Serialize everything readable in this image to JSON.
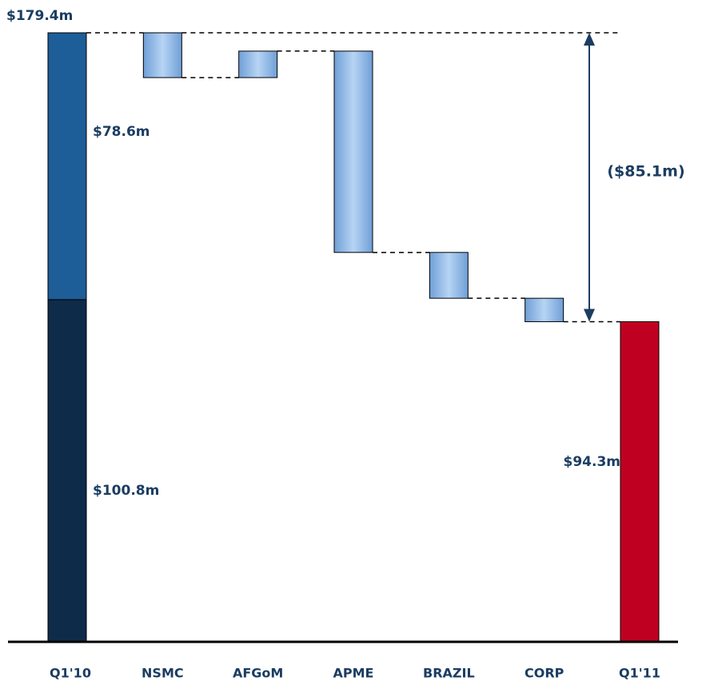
{
  "chart_data": {
    "type": "waterfall",
    "categories": [
      "Q1'10",
      "NSMC",
      "AFGoM",
      "APME",
      "BRAZIL",
      "CORP",
      "Q1'11"
    ],
    "values": [
      179.4,
      -13.2,
      7.8,
      -59.3,
      -13.5,
      -6.9,
      94.3
    ],
    "value_labels": [
      "$179.4m",
      null,
      null,
      null,
      null,
      null,
      "$94.3m"
    ],
    "segments": [
      {
        "value": 100.8,
        "label": "$100.8m",
        "color": "#0e2b4a"
      },
      {
        "value": 78.6,
        "label": "$78.6m",
        "color": "#1d5d98"
      }
    ],
    "change_color": "#94bde9",
    "end_color": "#c00020",
    "change": {
      "value": -85.1,
      "label": "($85.1m)",
      "color": "#c00030"
    },
    "ylim": [
      0,
      179.4
    ]
  }
}
